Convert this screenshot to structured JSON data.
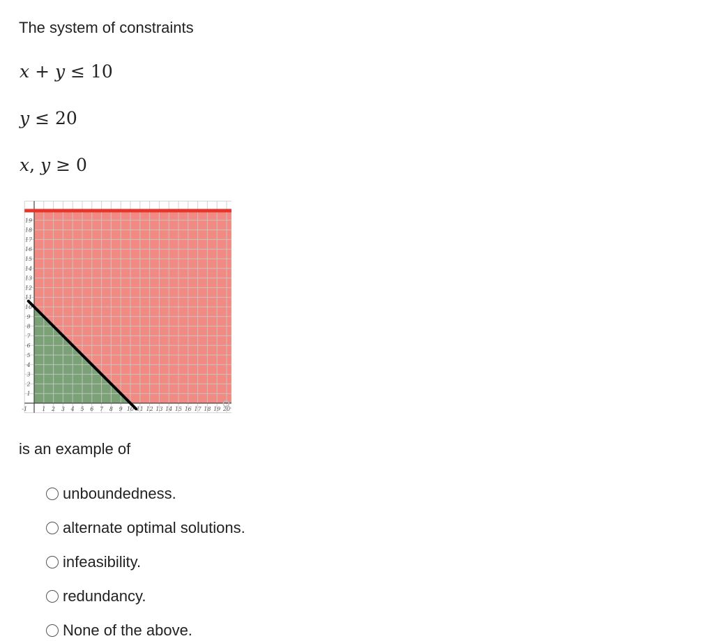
{
  "question": {
    "intro": "The system of constraints",
    "constraints": [
      {
        "pre": "",
        "lhs": [
          "x",
          "+",
          "y"
        ],
        "op": "≤",
        "rhs": "10"
      },
      {
        "lhs": [
          "y"
        ],
        "op": "≤",
        "rhs": "20"
      },
      {
        "lhs": [
          "x",
          ",",
          "y"
        ],
        "op": "≥",
        "rhs": "0"
      }
    ],
    "prompt": "is an example of"
  },
  "options": [
    {
      "label": "unboundedness.",
      "selected": false
    },
    {
      "label": "alternate optimal solutions.",
      "selected": false
    },
    {
      "label": "infeasibility.",
      "selected": false
    },
    {
      "label": "redundancy.",
      "selected": false
    },
    {
      "label": "None of the above.",
      "selected": false
    }
  ],
  "chart_data": {
    "type": "area",
    "x_ticks": [
      "-1",
      "1",
      "2",
      "3",
      "4",
      "5",
      "6",
      "7",
      "8",
      "9",
      "10",
      "11",
      "12",
      "13",
      "14",
      "15",
      "16",
      "17",
      "18",
      "19",
      "20"
    ],
    "y_ticks": [
      "1",
      "2",
      "3",
      "4",
      "5",
      "6",
      "7",
      "8",
      "9",
      "10",
      "11",
      "12",
      "13",
      "14",
      "15",
      "16",
      "17",
      "18",
      "19"
    ],
    "xlim": [
      -1,
      20.5
    ],
    "ylim": [
      -1,
      21
    ],
    "grid": true,
    "lines": [
      {
        "equation": "x + y = 10",
        "points": [
          [
            0,
            10
          ],
          [
            10,
            0
          ]
        ],
        "color": "#000000"
      },
      {
        "equation": "y = 20",
        "points": [
          [
            -1,
            20
          ],
          [
            20.5,
            20
          ]
        ],
        "color": "#e8352b"
      }
    ],
    "regions": [
      {
        "name": "y ≤ 20",
        "polygon": [
          [
            0,
            0
          ],
          [
            20.5,
            0
          ],
          [
            20.5,
            20
          ],
          [
            0,
            20
          ]
        ],
        "color": "#f08a83"
      },
      {
        "name": "feasible",
        "polygon": [
          [
            0,
            0
          ],
          [
            10,
            0
          ],
          [
            0,
            10
          ]
        ],
        "color": "#7aa276"
      }
    ],
    "colors": {
      "grid": "#c9c9c9",
      "axis": "#444444"
    }
  }
}
